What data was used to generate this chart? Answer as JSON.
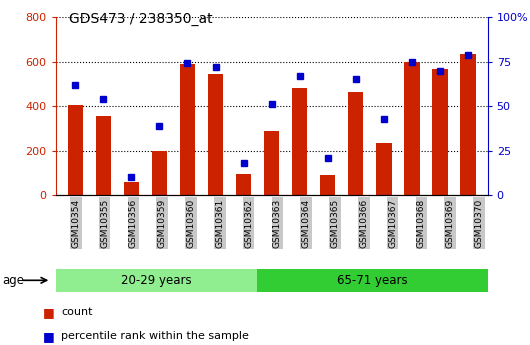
{
  "title": "GDS473 / 238350_at",
  "samples": [
    "GSM10354",
    "GSM10355",
    "GSM10356",
    "GSM10359",
    "GSM10360",
    "GSM10361",
    "GSM10362",
    "GSM10363",
    "GSM10364",
    "GSM10365",
    "GSM10366",
    "GSM10367",
    "GSM10368",
    "GSM10369",
    "GSM10370"
  ],
  "counts": [
    405,
    355,
    60,
    200,
    590,
    545,
    95,
    290,
    480,
    90,
    465,
    235,
    600,
    565,
    635
  ],
  "percentiles": [
    62,
    54,
    10,
    39,
    74,
    72,
    18,
    51,
    67,
    21,
    65,
    43,
    75,
    70,
    79
  ],
  "groups": [
    {
      "label": "20-29 years",
      "start": 0,
      "end": 7,
      "color": "#90EE90"
    },
    {
      "label": "65-71 years",
      "start": 7,
      "end": 15,
      "color": "#32CD32"
    }
  ],
  "bar_color": "#CC2200",
  "percentile_color": "#0000CC",
  "left_axis_color": "#CC2200",
  "right_axis_color": "#0000CC",
  "ylim_left": [
    0,
    800
  ],
  "ylim_right": [
    0,
    100
  ],
  "yticks_left": [
    0,
    200,
    400,
    600,
    800
  ],
  "yticks_right": [
    0,
    25,
    50,
    75,
    100
  ],
  "ytick_labels_right": [
    "0",
    "25",
    "50",
    "75",
    "100%"
  ],
  "age_label": "age",
  "legend_count": "count",
  "legend_percentile": "percentile rank within the sample",
  "bg_color": "#FFFFFF",
  "plot_bg_color": "#FFFFFF",
  "tick_label_bg": "#C8C8C8",
  "border_color": "#000000"
}
